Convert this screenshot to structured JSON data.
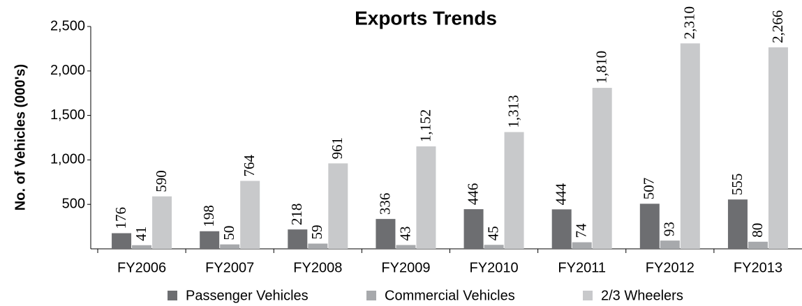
{
  "chart_data": {
    "type": "bar",
    "title": "Exports Trends",
    "y_label": "No. of Vehicles (000's)",
    "categories": [
      "FY2006",
      "FY2007",
      "FY2008",
      "FY2009",
      "FY2010",
      "FY2011",
      "FY2012",
      "FY2013"
    ],
    "series": [
      {
        "name": "Passenger Vehicles",
        "color": "#6d6e71",
        "values": [
          176,
          198,
          218,
          336,
          446,
          444,
          507,
          555
        ]
      },
      {
        "name": "Commercial Vehicles",
        "color": "#a7a9ac",
        "values": [
          41,
          50,
          59,
          43,
          45,
          74,
          93,
          80
        ]
      },
      {
        "name": "2/3 Wheelers",
        "color": "#c8c9cb",
        "values": [
          590,
          764,
          961,
          1152,
          1313,
          1810,
          2310,
          2266
        ],
        "value_labels": [
          "590",
          "764",
          "961",
          "1,152",
          "1,313",
          "1,810",
          "2,310",
          "2,266"
        ]
      }
    ],
    "ylim": [
      0,
      2500
    ],
    "yticks": [
      500,
      {
        "value": 1000,
        "label": "1,000"
      },
      {
        "value": 1500,
        "label": "1,500"
      },
      {
        "value": 2000,
        "label": "2,000"
      },
      {
        "value": 2500,
        "label": "2,500"
      }
    ]
  }
}
